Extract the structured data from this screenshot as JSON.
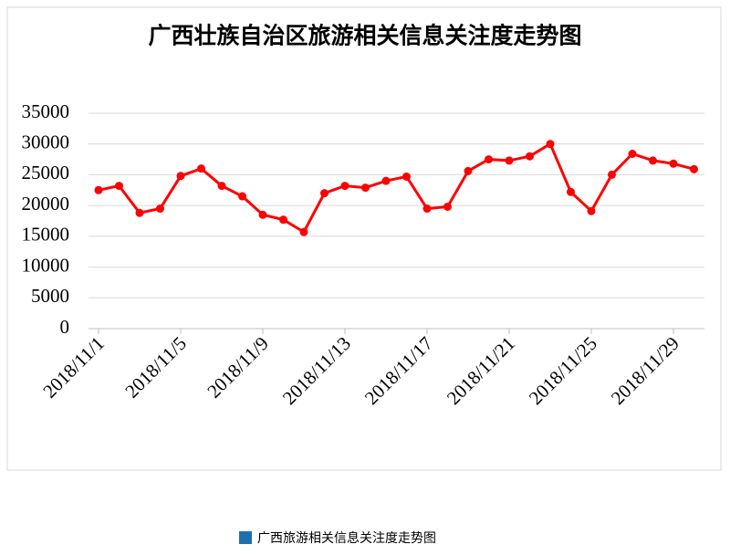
{
  "chart_data": {
    "type": "line",
    "title": "广西壮族自治区旅游相关信息关注度走势图",
    "categories": [
      "2018/11/1",
      null,
      null,
      null,
      "2018/11/5",
      null,
      null,
      null,
      "2018/11/9",
      null,
      null,
      null,
      "2018/11/13",
      null,
      null,
      null,
      "2018/11/17",
      null,
      null,
      null,
      "2018/11/21",
      null,
      null,
      null,
      "2018/11/25",
      null,
      null,
      null,
      "2018/11/29",
      null
    ],
    "values": [
      22500,
      23200,
      18800,
      19500,
      24800,
      26000,
      23200,
      21500,
      18500,
      17700,
      15700,
      22000,
      23200,
      22900,
      24000,
      24700,
      19500,
      19800,
      25600,
      27500,
      27300,
      28000,
      30000,
      22200,
      19100,
      25000,
      28400,
      27300,
      26800,
      25900
    ],
    "color": "#ff0000",
    "ylim": [
      0,
      35000
    ],
    "yticks": [
      0,
      5000,
      10000,
      15000,
      20000,
      25000,
      30000,
      35000
    ],
    "grid": true
  },
  "caption": {
    "text": "广西旅游相关信息关注度走势图",
    "color": "#1f6fb0"
  }
}
